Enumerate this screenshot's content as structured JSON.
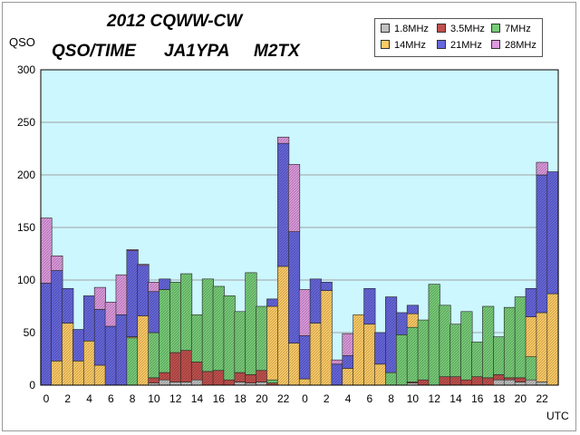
{
  "titles": {
    "line1": "2012 CQWW-CW",
    "line2a": "QSO/TIME",
    "line2b": "JA1YPA",
    "line2c": "M2TX"
  },
  "colors": {
    "plot_bg": "#ccf7ff",
    "grid": "#a0a0a0"
  },
  "chart_data": {
    "type": "bar",
    "stacked": true,
    "ylabel": "QSO",
    "xlabel": "UTC",
    "ylim": [
      0,
      300
    ],
    "yticks": [
      0,
      50,
      100,
      150,
      200,
      250,
      300
    ],
    "grid": true,
    "legend_position": "top-right",
    "categories": [
      "0",
      "1",
      "2",
      "3",
      "4",
      "5",
      "6",
      "7",
      "8",
      "9",
      "10",
      "11",
      "12",
      "13",
      "14",
      "15",
      "16",
      "17",
      "18",
      "19",
      "20",
      "21",
      "22",
      "23",
      "0",
      "1",
      "2",
      "3",
      "4",
      "5",
      "6",
      "7",
      "8",
      "9",
      "10",
      "11",
      "12",
      "13",
      "14",
      "15",
      "16",
      "17",
      "18",
      "19",
      "20",
      "21",
      "22",
      "23"
    ],
    "tick_labels": [
      "0",
      "",
      "2",
      "",
      "4",
      "",
      "6",
      "",
      "8",
      "",
      "10",
      "",
      "12",
      "",
      "14",
      "",
      "16",
      "",
      "18",
      "",
      "20",
      "",
      "22",
      "",
      "0",
      "",
      "2",
      "",
      "4",
      "",
      "6",
      "",
      "8",
      "",
      "10",
      "",
      "12",
      "",
      "14",
      "",
      "16",
      "",
      "18",
      "",
      "20",
      "",
      "22",
      ""
    ],
    "series": [
      {
        "name": "1.8MHz",
        "color": "#c0c0c0",
        "values": [
          0,
          0,
          0,
          0,
          0,
          0,
          0,
          0,
          0,
          0,
          2,
          5,
          3,
          3,
          5,
          0,
          0,
          0,
          3,
          2,
          3,
          0,
          0,
          0,
          0,
          0,
          0,
          0,
          0,
          0,
          0,
          0,
          0,
          0,
          2,
          0,
          0,
          0,
          0,
          0,
          0,
          0,
          5,
          5,
          3,
          5,
          3,
          0
        ]
      },
      {
        "name": "3.5MHz",
        "color": "#c0504d",
        "values": [
          0,
          0,
          0,
          0,
          0,
          0,
          0,
          0,
          0,
          0,
          5,
          7,
          28,
          30,
          17,
          13,
          14,
          5,
          9,
          8,
          11,
          2,
          0,
          0,
          0,
          0,
          0,
          0,
          0,
          0,
          0,
          0,
          0,
          0,
          1,
          5,
          0,
          8,
          8,
          5,
          8,
          7,
          5,
          2,
          4,
          0,
          0,
          0
        ]
      },
      {
        "name": "7MHz",
        "color": "#77cc77",
        "values": [
          0,
          0,
          0,
          0,
          0,
          0,
          0,
          0,
          45,
          0,
          43,
          79,
          67,
          73,
          45,
          88,
          80,
          80,
          58,
          97,
          61,
          3,
          0,
          0,
          0,
          0,
          0,
          0,
          0,
          0,
          0,
          0,
          12,
          48,
          52,
          57,
          96,
          68,
          50,
          65,
          33,
          68,
          36,
          67,
          77,
          22,
          0,
          0
        ]
      },
      {
        "name": "14MHz",
        "color": "#ffcc66",
        "values": [
          0,
          23,
          59,
          23,
          42,
          19,
          0,
          0,
          1,
          66,
          0,
          0,
          0,
          0,
          0,
          0,
          0,
          0,
          0,
          0,
          0,
          70,
          113,
          40,
          6,
          59,
          90,
          0,
          16,
          67,
          58,
          20,
          0,
          0,
          13,
          0,
          0,
          0,
          0,
          0,
          0,
          0,
          0,
          0,
          0,
          38,
          66,
          87
        ]
      },
      {
        "name": "21MHz",
        "color": "#6666dd",
        "values": [
          97,
          86,
          33,
          30,
          43,
          53,
          56,
          67,
          82,
          48,
          39,
          10,
          0,
          0,
          0,
          0,
          0,
          0,
          0,
          0,
          0,
          7,
          117,
          106,
          41,
          42,
          8,
          20,
          12,
          0,
          34,
          30,
          72,
          21,
          8,
          0,
          0,
          0,
          0,
          0,
          0,
          0,
          0,
          0,
          0,
          27,
          131,
          116
        ]
      },
      {
        "name": "28MHz",
        "color": "#dd99dd",
        "values": [
          62,
          14,
          0,
          0,
          0,
          21,
          23,
          38,
          1,
          1,
          9,
          0,
          0,
          0,
          0,
          0,
          0,
          0,
          0,
          0,
          0,
          0,
          6,
          64,
          44,
          0,
          0,
          4,
          21,
          0,
          0,
          0,
          0,
          0,
          0,
          0,
          0,
          0,
          0,
          0,
          0,
          0,
          0,
          0,
          0,
          0,
          12,
          0
        ]
      }
    ]
  }
}
